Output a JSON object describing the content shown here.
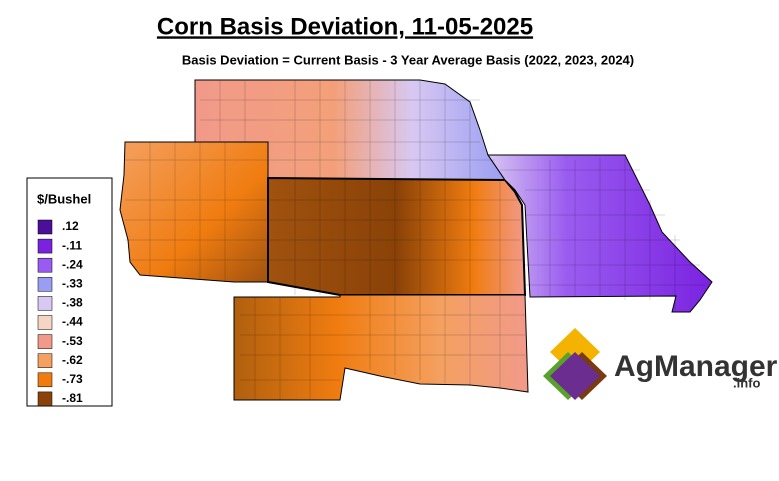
{
  "header": {
    "title": "Corn Basis Deviation, 11-05-2025",
    "subtitle": "Basis Deviation = Current Basis - 3 Year Average Basis (2022, 2023, 2024)"
  },
  "legend": {
    "title": "$/Bushel",
    "items": [
      {
        "label": ".12",
        "color": "#4b0f9a"
      },
      {
        "label": "-.11",
        "color": "#7a22e0"
      },
      {
        "label": "-.24",
        "color": "#9a5cf0"
      },
      {
        "label": "-.33",
        "color": "#9a9ef2"
      },
      {
        "label": "-.38",
        "color": "#d8c8f2"
      },
      {
        "label": "-.44",
        "color": "#f5d6c4"
      },
      {
        "label": "-.53",
        "color": "#f29a8a"
      },
      {
        "label": "-.62",
        "color": "#f4a060"
      },
      {
        "label": "-.73",
        "color": "#f07c10"
      },
      {
        "label": "-.81",
        "color": "#8a4208"
      }
    ]
  },
  "logo": {
    "name": "AgManager",
    "suffix": ".info"
  }
}
